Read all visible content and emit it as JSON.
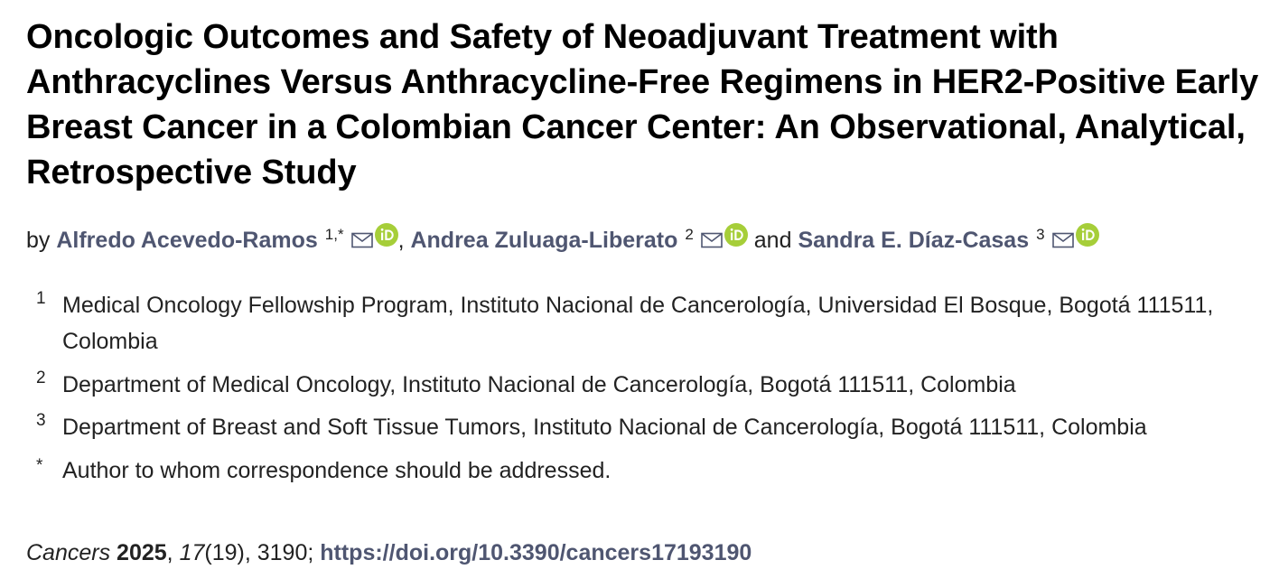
{
  "article": {
    "title": "Oncologic Outcomes and Safety of Neoadjuvant Treatment with Anthracyclines Versus Anthracycline-Free Regimens in HER2-Positive Early Breast Cancer in a Colombian Cancer Center: An Observational, Analytical, Retrospective Study",
    "by_label": "by",
    "authors": [
      {
        "name": "Alfredo Acevedo-Ramos",
        "sup": "1,*",
        "icons": [
          "mail-icon",
          "orcid-icon"
        ]
      },
      {
        "name": "Andrea Zuluaga-Liberato",
        "sup": "2",
        "icons": [
          "mail-icon",
          "orcid-icon"
        ]
      },
      {
        "name": "Sandra E. Díaz-Casas",
        "sup": "3",
        "icons": [
          "mail-icon",
          "orcid-icon"
        ]
      }
    ],
    "separator_comma": ",",
    "separator_and": "and",
    "affiliations": [
      {
        "mark": "1",
        "text": "Medical Oncology Fellowship Program, Instituto Nacional de Cancerología, Universidad El Bosque, Bogotá 111511, Colombia"
      },
      {
        "mark": "2",
        "text": "Department of Medical Oncology, Instituto Nacional de Cancerología, Bogotá 111511, Colombia"
      },
      {
        "mark": "3",
        "text": "Department of Breast and Soft Tissue Tumors, Instituto Nacional de Cancerología, Bogotá 111511, Colombia"
      },
      {
        "mark": "*",
        "text": "Author to whom correspondence should be addressed."
      }
    ],
    "citation": {
      "journal": "Cancers",
      "year": "2025",
      "volume": "17",
      "issue_pages": "(19), 3190;",
      "doi": "https://doi.org/10.3390/cancers17193190"
    }
  },
  "colors": {
    "link": "#4f5671",
    "orcid": "#a6ce39",
    "text": "#222222"
  }
}
